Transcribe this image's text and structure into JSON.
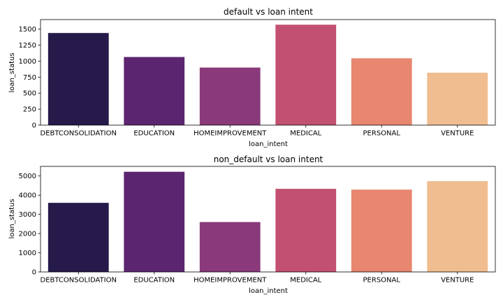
{
  "chart_data": [
    {
      "type": "bar",
      "title": "default vs loan intent",
      "xlabel": "loan_intent",
      "ylabel": "loan_status",
      "categories": [
        "DEBTCONSOLIDATION",
        "EDUCATION",
        "HOMEIMPROVEMENT",
        "MEDICAL",
        "PERSONAL",
        "VENTURE"
      ],
      "values": [
        1440,
        1065,
        900,
        1570,
        1045,
        820
      ],
      "ylim": [
        0,
        1650
      ],
      "yticks": [
        0,
        250,
        500,
        750,
        1000,
        1250,
        1500
      ],
      "colors": [
        "#251a4a",
        "#5c2570",
        "#8a3a7a",
        "#c25070",
        "#e8866f",
        "#f0bd90"
      ],
      "grid": false,
      "legend": "none"
    },
    {
      "type": "bar",
      "title": "non_default vs loan intent",
      "xlabel": "loan_intent",
      "ylabel": "loan_status",
      "categories": [
        "DEBTCONSOLIDATION",
        "EDUCATION",
        "HOMEIMPROVEMENT",
        "MEDICAL",
        "PERSONAL",
        "VENTURE"
      ],
      "values": [
        3600,
        5220,
        2600,
        4330,
        4290,
        4730
      ],
      "ylim": [
        0,
        5500
      ],
      "yticks": [
        0,
        1000,
        2000,
        3000,
        4000,
        5000
      ],
      "colors": [
        "#251a4a",
        "#5c2570",
        "#8a3a7a",
        "#c25070",
        "#e8866f",
        "#f0bd90"
      ],
      "grid": false,
      "legend": "none"
    }
  ]
}
